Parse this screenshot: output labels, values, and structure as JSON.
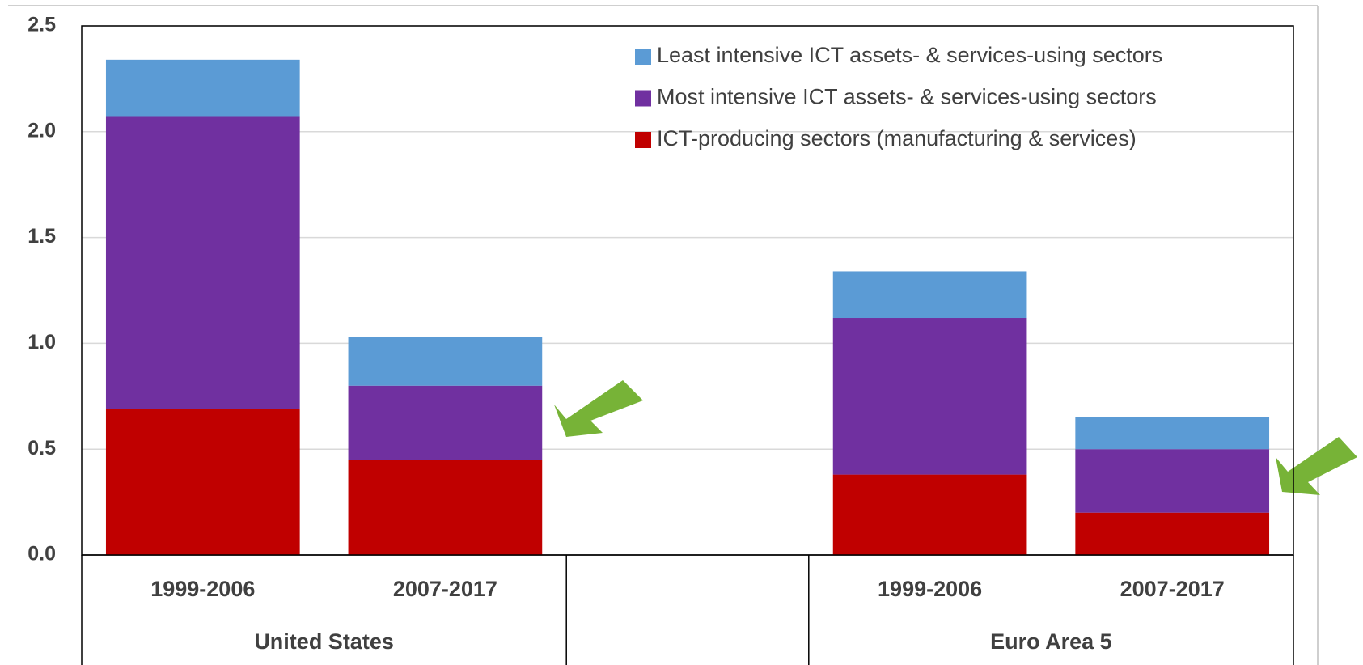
{
  "chart_data": {
    "type": "stacked_bar",
    "categories": [
      "1999-2006",
      "2007-2017",
      null,
      "1999-2006",
      "2007-2017"
    ],
    "groups": [
      "United States",
      "Euro Area 5"
    ],
    "series": [
      {
        "name": "ICT-producing sectors (manufacturing & services)",
        "color": "#c00000",
        "values": [
          0.69,
          0.45,
          null,
          0.38,
          0.2
        ]
      },
      {
        "name": "Most intensive ICT assets- & services-using sectors",
        "color": "#7030a0",
        "values": [
          1.38,
          0.35,
          null,
          0.74,
          0.3
        ]
      },
      {
        "name": "Least intensive ICT assets- & services-using sectors",
        "color": "#5b9bd5",
        "values": [
          0.27,
          0.23,
          null,
          0.22,
          0.15
        ]
      }
    ],
    "ylim": [
      0,
      2.5
    ],
    "yticks": [
      {
        "value": 0,
        "label": "0.0"
      },
      0.5,
      {
        "value": 1,
        "label": "1.0"
      },
      1.5,
      {
        "value": 2,
        "label": "2.0"
      },
      2.5
    ],
    "grid": true,
    "legend": "top-right"
  }
}
